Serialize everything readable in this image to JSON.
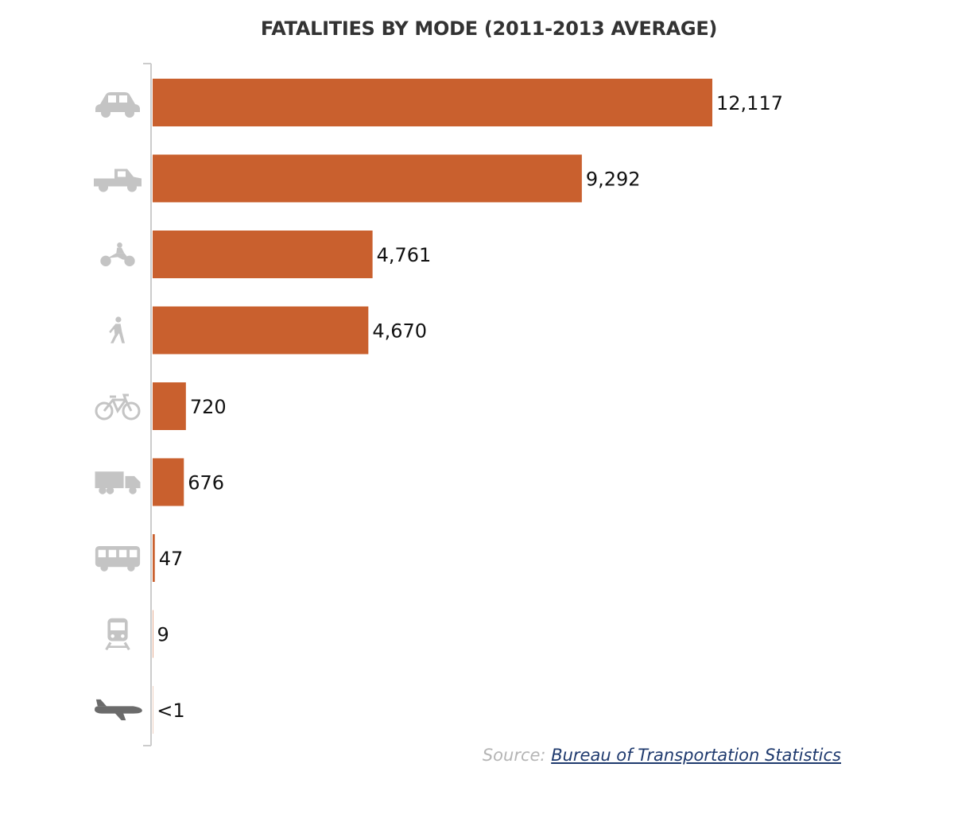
{
  "chart_data": {
    "type": "bar",
    "orientation": "horizontal",
    "title": "FATALITIES BY MODE (2011-2013 AVERAGE)",
    "categories": [
      {
        "icon": "car-icon",
        "value": 12117,
        "label": "12,117"
      },
      {
        "icon": "pickup-truck-icon",
        "value": 9292,
        "label": "9,292"
      },
      {
        "icon": "motorcycle-icon",
        "value": 4761,
        "label": "4,761"
      },
      {
        "icon": "pedestrian-icon",
        "value": 4670,
        "label": "4,670"
      },
      {
        "icon": "bicycle-icon",
        "value": 720,
        "label": "720"
      },
      {
        "icon": "delivery-truck-icon",
        "value": 676,
        "label": "676"
      },
      {
        "icon": "bus-icon",
        "value": 47,
        "label": "47"
      },
      {
        "icon": "train-icon",
        "value": 9,
        "label": "9"
      },
      {
        "icon": "airplane-icon",
        "value": 0.5,
        "label": "<1"
      }
    ],
    "xlim": [
      0,
      12117
    ],
    "grid": false,
    "bar_color": "#c9602e",
    "icon_color": "#c4c4c4",
    "airplane_icon_color": "#6b6b6b"
  },
  "source": {
    "prefix": "Source: ",
    "link_text": "Bureau of Transportation Statistics"
  }
}
